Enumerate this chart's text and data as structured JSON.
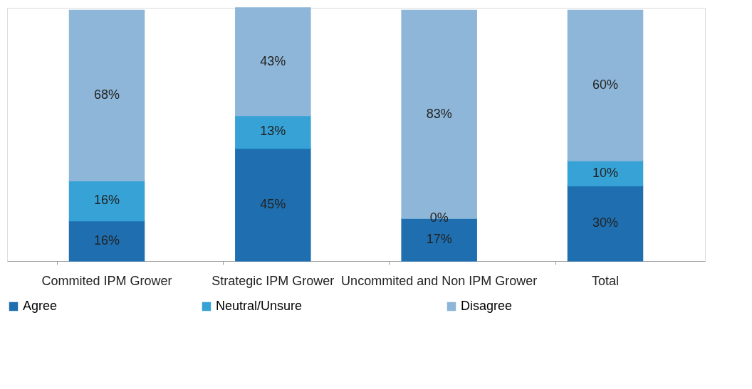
{
  "chart_data": {
    "type": "bar",
    "stacked": true,
    "legend": "bottom",
    "grid": false,
    "categories": [
      "Commited IPM Grower",
      "Strategic IPM Grower",
      "Uncommited and Non IPM Grower",
      "Total"
    ],
    "series": [
      {
        "name": "Agree",
        "color": "#1f6fb0",
        "values": [
          16,
          45,
          17,
          30
        ],
        "value_labels": [
          "16%",
          "45%",
          "17%",
          "30%"
        ]
      },
      {
        "name": "Neutral/Unsure",
        "color": "#36a2d6",
        "values": [
          16,
          13,
          0,
          10
        ],
        "value_labels": [
          "16%",
          "13%",
          "0%",
          "10%"
        ]
      },
      {
        "name": "Disagree",
        "color": "#8db6d8",
        "values": [
          68,
          43,
          83,
          60
        ],
        "value_labels": [
          "68%",
          "43%",
          "83%",
          "60%"
        ]
      }
    ]
  }
}
